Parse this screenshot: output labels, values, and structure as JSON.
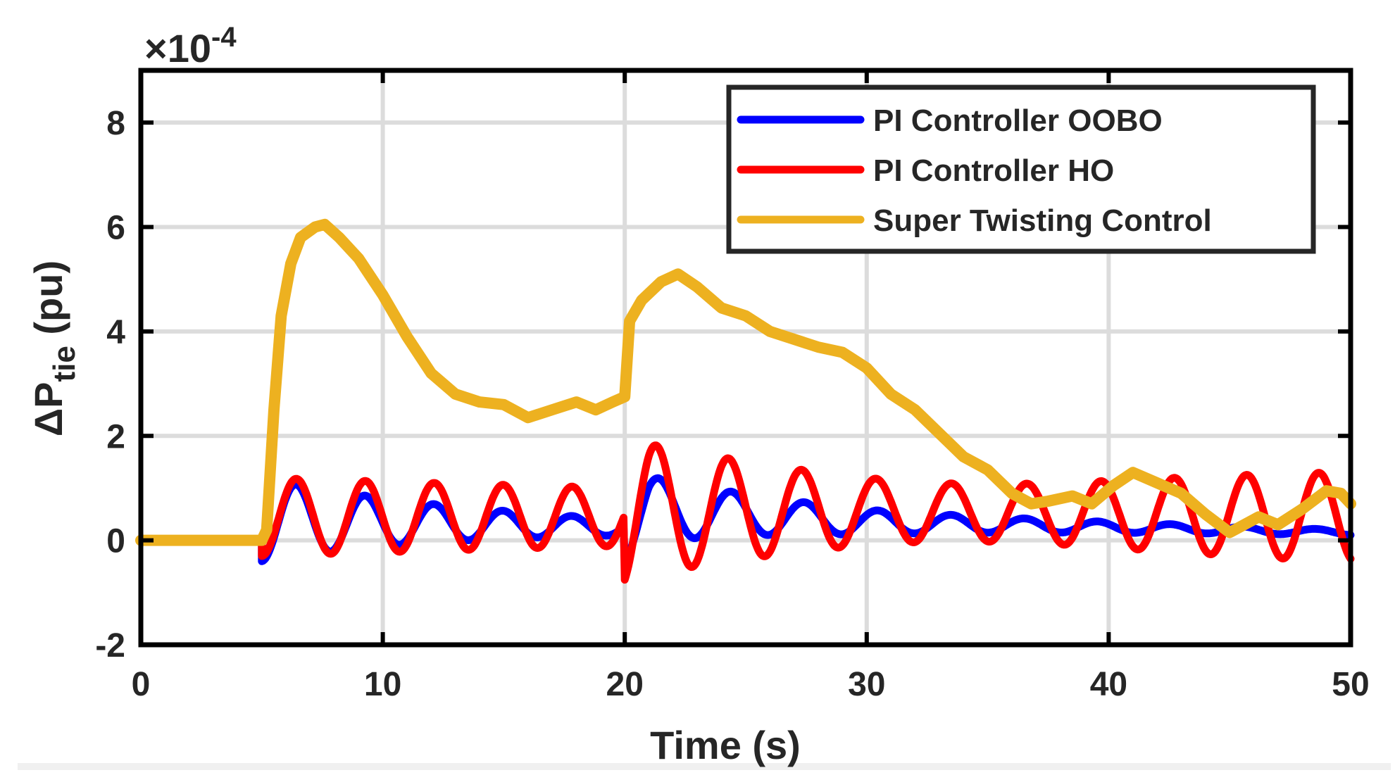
{
  "chart_data": {
    "type": "line",
    "title": "",
    "xlabel": "Time (s)",
    "ylabel_main": "ΔP",
    "ylabel_sub": "tie",
    "ylabel_unit": " (pu)",
    "y_multiplier_prefix": "×10",
    "y_multiplier_exp": "-4",
    "xlim": [
      0,
      50
    ],
    "ylim": [
      -2,
      9
    ],
    "x_ticks": [
      0,
      10,
      20,
      30,
      40,
      50
    ],
    "y_ticks": [
      -2,
      0,
      2,
      4,
      6,
      8
    ],
    "x_tick_labels": [
      "0",
      "10",
      "20",
      "30",
      "40",
      "50"
    ],
    "y_tick_labels": [
      "-2",
      "0",
      "2",
      "4",
      "6",
      "8"
    ],
    "grid": true,
    "legend_position": "top-right",
    "series": [
      {
        "name": "PI Controller OOBO",
        "label": "PI Controller OOBO",
        "color": "#0000ff",
        "model": {
          "t0": 5,
          "offset": [
            [
              5,
              0.4
            ],
            [
              20,
              0.25
            ],
            [
              21,
              0.6
            ],
            [
              30,
              0.35
            ],
            [
              50,
              0.15
            ]
          ],
          "oscillations": [
            {
              "start": 5,
              "amp": 0.8,
              "decay": 0.11,
              "period": 2.85,
              "phase": 0
            },
            {
              "start": 20,
              "amp": 0.7,
              "decay": 0.09,
              "period": 3.0,
              "phase": 0
            }
          ]
        }
      },
      {
        "name": "PI Controller HO",
        "label": "PI Controller HO",
        "color": "#ff0000",
        "model": {
          "t0": 5,
          "offset": [
            [
              5,
              0.45
            ],
            [
              20,
              0.45
            ],
            [
              21,
              0.6
            ],
            [
              50,
              0.45
            ]
          ],
          "oscillations": [
            {
              "start": 5,
              "amp": 0.75,
              "decay": 0.02,
              "period": 2.85,
              "phase": 0
            },
            {
              "start": 20,
              "amp": 1.25,
              "decay": 0.018,
              "period": 3.0,
              "phase": 0
            }
          ]
        }
      },
      {
        "name": "Super Twisting Control",
        "label": "Super Twisting Control",
        "color": "#edb120",
        "points": [
          [
            0,
            0
          ],
          [
            5,
            0
          ],
          [
            5.2,
            0.2
          ],
          [
            5.5,
            2.5
          ],
          [
            5.8,
            4.3
          ],
          [
            6.2,
            5.3
          ],
          [
            6.6,
            5.8
          ],
          [
            7.2,
            6.0
          ],
          [
            7.6,
            6.05
          ],
          [
            8.2,
            5.8
          ],
          [
            9,
            5.4
          ],
          [
            10,
            4.7
          ],
          [
            11,
            3.9
          ],
          [
            12,
            3.2
          ],
          [
            13,
            2.8
          ],
          [
            14,
            2.65
          ],
          [
            15,
            2.6
          ],
          [
            16,
            2.35
          ],
          [
            17,
            2.5
          ],
          [
            18,
            2.65
          ],
          [
            18.8,
            2.5
          ],
          [
            19.5,
            2.65
          ],
          [
            20,
            2.75
          ],
          [
            20.2,
            4.2
          ],
          [
            20.7,
            4.6
          ],
          [
            21.5,
            4.95
          ],
          [
            22.2,
            5.1
          ],
          [
            23,
            4.85
          ],
          [
            24,
            4.45
          ],
          [
            25,
            4.3
          ],
          [
            26,
            4.0
          ],
          [
            27,
            3.85
          ],
          [
            28,
            3.7
          ],
          [
            29,
            3.6
          ],
          [
            30,
            3.3
          ],
          [
            31,
            2.8
          ],
          [
            32,
            2.5
          ],
          [
            33,
            2.05
          ],
          [
            34,
            1.6
          ],
          [
            35,
            1.35
          ],
          [
            36,
            0.9
          ],
          [
            36.8,
            0.7
          ],
          [
            37.5,
            0.75
          ],
          [
            38.5,
            0.85
          ],
          [
            39.3,
            0.7
          ],
          [
            40.2,
            1.05
          ],
          [
            41,
            1.3
          ],
          [
            42,
            1.1
          ],
          [
            43,
            0.9
          ],
          [
            44,
            0.5
          ],
          [
            45,
            0.15
          ],
          [
            45.6,
            0.3
          ],
          [
            46.2,
            0.45
          ],
          [
            47,
            0.3
          ],
          [
            48,
            0.6
          ],
          [
            49,
            0.95
          ],
          [
            49.6,
            0.9
          ],
          [
            50,
            0.7
          ]
        ]
      }
    ]
  }
}
